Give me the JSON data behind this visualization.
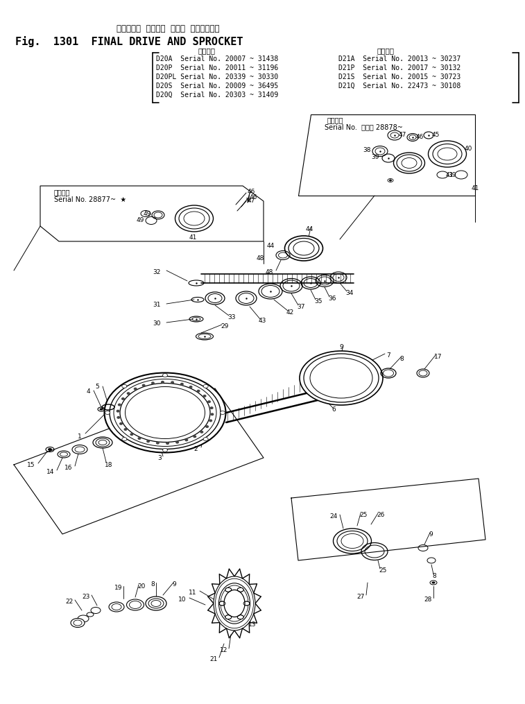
{
  "bg_color": "#ffffff",
  "title_jp": "ファイナル  ドライブ  および  スプロケット",
  "title_en": "Fig.  1301  FINAL DRIVE AND SPROCKET",
  "app_label": "適用号機",
  "serial_left": [
    "D20A  Serial No. 20007 ~ 31438",
    "D20P  Serial No. 20011 ~ 31196",
    "D20PL Serial No. 20339 ~ 30330",
    "D20S  Serial No. 20009 ~ 36495",
    "D20Q  Serial No. 20303 ~ 31409"
  ],
  "serial_right": [
    "D21A  Serial No. 20013 ~ 30237",
    "D21P  Serial No. 20017 ~ 30132",
    "D21S  Serial No. 20015 ~ 30723",
    "D21Q  Serial No. 22473 ~ 30108"
  ],
  "note_upper_jp": "適用号機",
  "note_upper_sn": "Serial No.  ・・・ 28878~",
  "note_lower_jp": "適用号機",
  "note_lower_sn": "Serial No. 28877~  ★"
}
